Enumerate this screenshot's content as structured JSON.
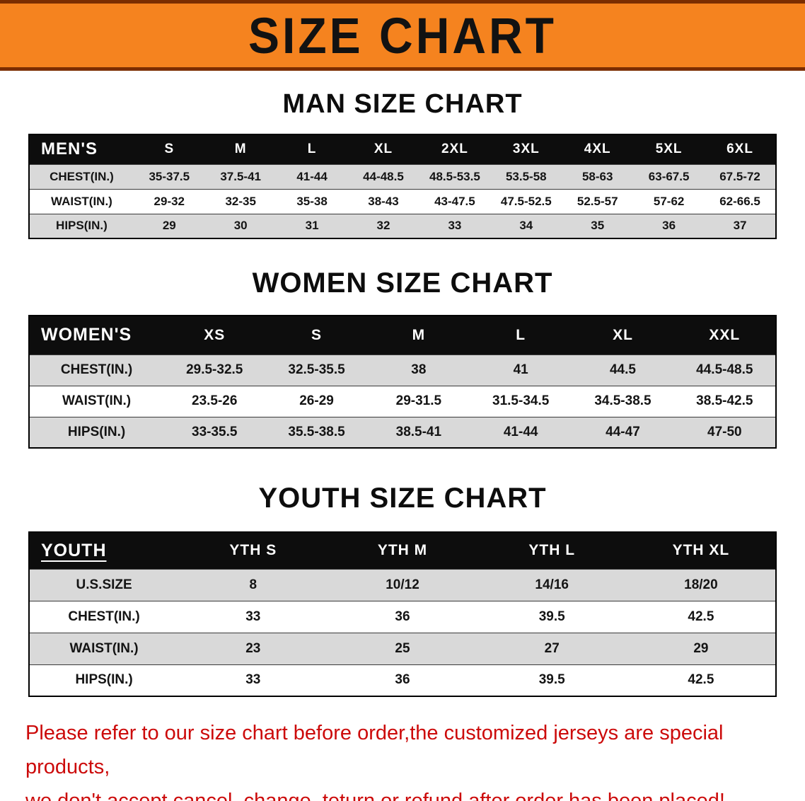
{
  "banner": {
    "title": "SIZE CHART"
  },
  "colors": {
    "banner_orange": "#F5831F",
    "banner_border": "#7B2D00",
    "table_header_black": "#0d0d0d",
    "row_shaded_gray": "#d9d9d9",
    "row_plain_white": "#ffffff",
    "disclaimer_red": "#CC0A0A"
  },
  "sections": [
    {
      "heading": "MAN SIZE CHART",
      "table": {
        "header": [
          "MEN'S",
          "S",
          "M",
          "L",
          "XL",
          "2XL",
          "3XL",
          "4XL",
          "5XL",
          "6XL"
        ],
        "rows": [
          [
            "CHEST(IN.)",
            "35-37.5",
            "37.5-41",
            "41-44",
            "44-48.5",
            "48.5-53.5",
            "53.5-58",
            "58-63",
            "63-67.5",
            "67.5-72"
          ],
          [
            "WAIST(IN.)",
            "29-32",
            "32-35",
            "35-38",
            "38-43",
            "43-47.5",
            "47.5-52.5",
            "52.5-57",
            "57-62",
            "62-66.5"
          ],
          [
            "HIPS(IN.)",
            "29",
            "30",
            "31",
            "32",
            "33",
            "34",
            "35",
            "36",
            "37"
          ]
        ]
      }
    },
    {
      "heading": "WOMEN SIZE CHART",
      "table": {
        "header": [
          "WOMEN'S",
          "XS",
          "S",
          "M",
          "L",
          "XL",
          "XXL"
        ],
        "rows": [
          [
            "CHEST(IN.)",
            "29.5-32.5",
            "32.5-35.5",
            "38",
            "41",
            "44.5",
            "44.5-48.5"
          ],
          [
            "WAIST(IN.)",
            "23.5-26",
            "26-29",
            "29-31.5",
            "31.5-34.5",
            "34.5-38.5",
            "38.5-42.5"
          ],
          [
            "HIPS(IN.)",
            "33-35.5",
            "35.5-38.5",
            "38.5-41",
            "41-44",
            "44-47",
            "47-50"
          ]
        ]
      }
    },
    {
      "heading": "YOUTH SIZE CHART",
      "table": {
        "header": [
          "YOUTH",
          "YTH S",
          "YTH M",
          "YTH L",
          "YTH XL"
        ],
        "rows": [
          [
            "U.S.SIZE",
            "8",
            "10/12",
            "14/16",
            "18/20"
          ],
          [
            "CHEST(IN.)",
            "33",
            "36",
            "39.5",
            "42.5"
          ],
          [
            "WAIST(IN.)",
            "23",
            "25",
            "27",
            "29"
          ],
          [
            "HIPS(IN.)",
            "33",
            "36",
            "39.5",
            "42.5"
          ]
        ]
      }
    }
  ],
  "disclaimer": {
    "line1": "Please refer to our size chart before order,the customized jerseys are special products,",
    "line2": "we don't accept cancel, change, teturn or refund after order has been placed!"
  }
}
